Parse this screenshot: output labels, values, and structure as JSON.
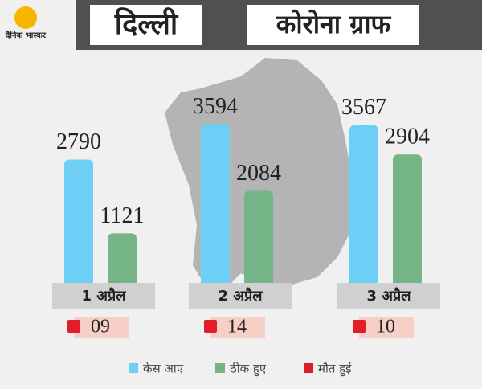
{
  "logo": "दैनिक भास्कर",
  "chart_data": {
    "type": "bar",
    "title": "दिल्ली",
    "subtitle": "कोरोना ग्राफ",
    "categories": [
      "1 अप्रैल",
      "2 अप्रैल",
      "3 अप्रैल"
    ],
    "series": [
      {
        "name": "केस आए",
        "color": "#6dcff6",
        "values": [
          2790,
          3594,
          3567
        ]
      },
      {
        "name": "ठीक हुए",
        "color": "#74b487",
        "values": [
          1121,
          2084,
          2904
        ]
      },
      {
        "name": "मौत हुईं",
        "color": "#e11d2a",
        "values": [
          9,
          14,
          10
        ],
        "value_labels": [
          "09",
          "14",
          "10"
        ]
      }
    ],
    "ylim": [
      0,
      4000
    ]
  }
}
